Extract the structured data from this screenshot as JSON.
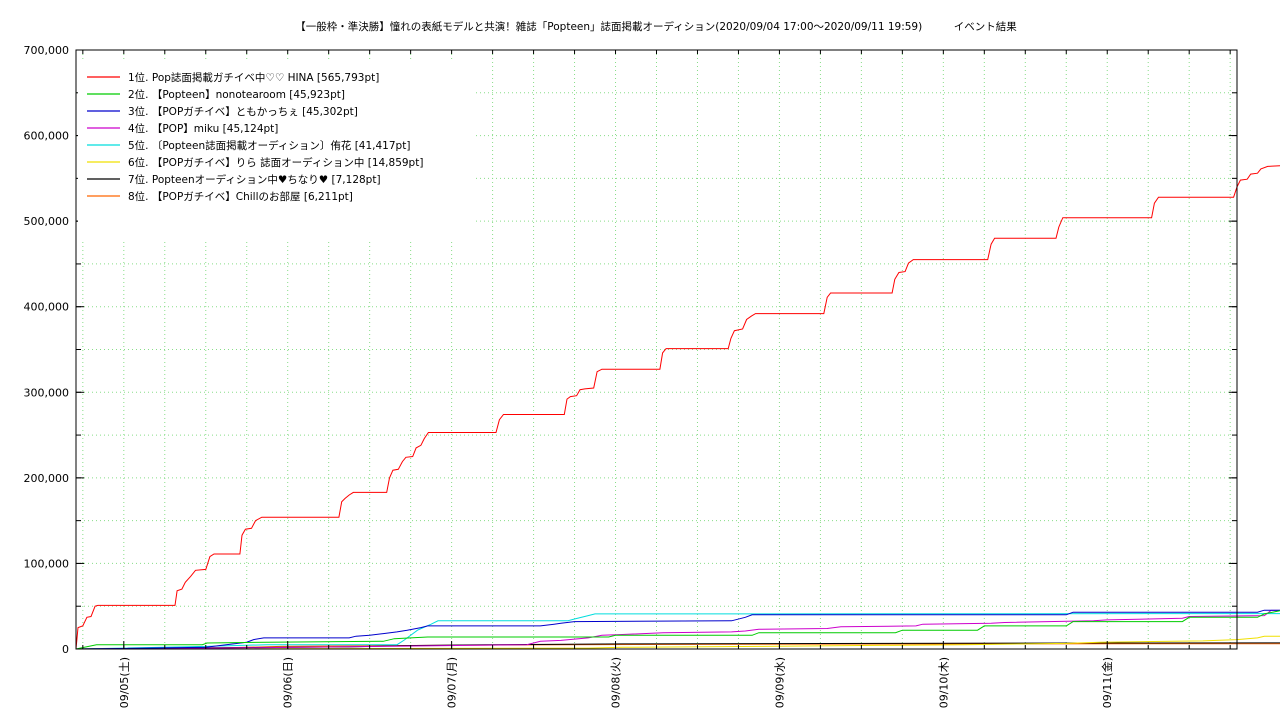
{
  "chart_data": {
    "type": "line",
    "title": "【一般枠・準決勝】憧れの表紙モデルと共演！雑誌「Popteen」誌面掲載オーディション(2020/09/04 17:00～2020/09/11 19:59)　　　イベント結果",
    "ylim": [
      0,
      700000
    ],
    "y_ticks": [
      "700,000",
      "600,000",
      "500,000",
      "400,000",
      "300,000",
      "200,000",
      "100,000",
      "0"
    ],
    "y_tick_values": [
      700000,
      600000,
      500000,
      400000,
      300000,
      200000,
      100000,
      0
    ],
    "x_range_hours": [
      0,
      170
    ],
    "x_ticks": [
      "09/05(土)",
      "09/06(日)",
      "09/07(月)",
      "09/08(火)",
      "09/09(水)",
      "09/10(木)",
      "09/11(金)"
    ],
    "x_tick_hours": [
      7,
      31,
      55,
      79,
      103,
      127,
      151
    ],
    "grid": true,
    "legend_position": "top-left",
    "series": [
      {
        "name": "1位. Pop誌面掲載ガチイベ中♡♡ HINA [565,793pt]",
        "color": "#ff0000",
        "points": [
          [
            0,
            0
          ],
          [
            0.3,
            25000
          ],
          [
            1,
            27000
          ],
          [
            1.6,
            37000
          ],
          [
            2.2,
            38000
          ],
          [
            2.8,
            50000
          ],
          [
            3.2,
            51000
          ],
          [
            14.5,
            51000
          ],
          [
            14.8,
            68000
          ],
          [
            15.5,
            70000
          ],
          [
            16,
            78000
          ],
          [
            16.8,
            85000
          ],
          [
            17.5,
            92000
          ],
          [
            19,
            93000
          ],
          [
            19.6,
            108000
          ],
          [
            20.2,
            111000
          ],
          [
            24,
            111000
          ],
          [
            24.3,
            133000
          ],
          [
            24.8,
            140000
          ],
          [
            25.7,
            141000
          ],
          [
            26.3,
            150000
          ],
          [
            27.2,
            154000
          ],
          [
            38.5,
            154000
          ],
          [
            38.9,
            172000
          ],
          [
            39.4,
            176000
          ],
          [
            40,
            180000
          ],
          [
            40.6,
            183000
          ],
          [
            45.5,
            183000
          ],
          [
            45.9,
            200000
          ],
          [
            46.4,
            209000
          ],
          [
            47.2,
            210000
          ],
          [
            47.8,
            219000
          ],
          [
            48.3,
            224000
          ],
          [
            49.3,
            225000
          ],
          [
            49.8,
            235000
          ],
          [
            50.5,
            238000
          ],
          [
            51,
            246000
          ],
          [
            51.6,
            253000
          ],
          [
            61.5,
            253000
          ],
          [
            62,
            268000
          ],
          [
            62.6,
            274000
          ],
          [
            71.5,
            274000
          ],
          [
            71.9,
            292000
          ],
          [
            72.4,
            295000
          ],
          [
            73.3,
            296000
          ],
          [
            73.8,
            303000
          ],
          [
            74.5,
            304000
          ],
          [
            75.8,
            305000
          ],
          [
            76.3,
            324000
          ],
          [
            77,
            327000
          ],
          [
            85.5,
            327000
          ],
          [
            85.9,
            346000
          ],
          [
            86.4,
            351000
          ],
          [
            95.5,
            351000
          ],
          [
            95.9,
            363000
          ],
          [
            96.4,
            372000
          ],
          [
            97.6,
            374000
          ],
          [
            98.2,
            385000
          ],
          [
            98.9,
            389000
          ],
          [
            99.5,
            392000
          ],
          [
            109.5,
            392000
          ],
          [
            110,
            411000
          ],
          [
            110.5,
            416000
          ],
          [
            119.5,
            416000
          ],
          [
            119.9,
            432000
          ],
          [
            120.5,
            440000
          ],
          [
            121.4,
            441000
          ],
          [
            121.9,
            451000
          ],
          [
            122.6,
            455000
          ],
          [
            133.5,
            455000
          ],
          [
            134,
            473000
          ],
          [
            134.5,
            480000
          ],
          [
            143.5,
            480000
          ],
          [
            143.9,
            493000
          ],
          [
            144.5,
            504000
          ],
          [
            157.5,
            504000
          ],
          [
            157.9,
            521000
          ],
          [
            158.5,
            528000
          ],
          [
            169.5,
            528000
          ],
          [
            170,
            540000
          ],
          [
            170.5,
            548000
          ],
          [
            171.5,
            549000
          ],
          [
            172,
            555000
          ],
          [
            173,
            556000
          ],
          [
            173.5,
            561000
          ],
          [
            174.5,
            564000
          ],
          [
            177,
            565000
          ]
        ]
      },
      {
        "name": "2位. 【Popteen】nonotearoom [45,923pt]",
        "color": "#00cc00",
        "points": [
          [
            0,
            0
          ],
          [
            3,
            5000
          ],
          [
            18.5,
            5000
          ],
          [
            19.2,
            7000
          ],
          [
            28,
            8000
          ],
          [
            45,
            9000
          ],
          [
            46.6,
            12000
          ],
          [
            49,
            13000
          ],
          [
            51.5,
            14000
          ],
          [
            78,
            14000
          ],
          [
            79,
            16000
          ],
          [
            99,
            16000
          ],
          [
            100,
            19000
          ],
          [
            120,
            19000
          ],
          [
            121,
            22000
          ],
          [
            132,
            22000
          ],
          [
            133,
            27000
          ],
          [
            145,
            27000
          ],
          [
            146,
            32000
          ],
          [
            162,
            32000
          ],
          [
            163,
            37000
          ],
          [
            173,
            37000
          ],
          [
            174,
            41000
          ],
          [
            177,
            45900
          ]
        ]
      },
      {
        "name": "3位. 【POPガチイベ】ともかっちぇ [45,302pt]",
        "color": "#0000cc",
        "points": [
          [
            0,
            0
          ],
          [
            19,
            2000
          ],
          [
            22,
            5000
          ],
          [
            25,
            8000
          ],
          [
            26,
            11000
          ],
          [
            27.5,
            13000
          ],
          [
            40,
            13000
          ],
          [
            41,
            15000
          ],
          [
            43,
            16000
          ],
          [
            45,
            18000
          ],
          [
            47,
            20000
          ],
          [
            48.5,
            22000
          ],
          [
            50.5,
            25000
          ],
          [
            51.5,
            27000
          ],
          [
            68,
            27000
          ],
          [
            70,
            29000
          ],
          [
            71,
            30000
          ],
          [
            73,
            32000
          ],
          [
            96,
            33000
          ],
          [
            98,
            37000
          ],
          [
            99,
            40000
          ],
          [
            145,
            40000
          ],
          [
            146,
            43000
          ],
          [
            173,
            43000
          ],
          [
            174,
            45300
          ],
          [
            177,
            45300
          ]
        ]
      },
      {
        "name": "4位. 【POP】miku [45,124pt]",
        "color": "#cc00cc",
        "points": [
          [
            0,
            0
          ],
          [
            20,
            1000
          ],
          [
            45,
            3000
          ],
          [
            66,
            5000
          ],
          [
            68,
            9000
          ],
          [
            71,
            10000
          ],
          [
            75,
            13000
          ],
          [
            77,
            16000
          ],
          [
            80,
            17000
          ],
          [
            86,
            19000
          ],
          [
            96,
            20000
          ],
          [
            98,
            21000
          ],
          [
            100,
            23000
          ],
          [
            110,
            24000
          ],
          [
            112,
            26000
          ],
          [
            123,
            27000
          ],
          [
            124,
            29000
          ],
          [
            134,
            30000
          ],
          [
            136,
            31000
          ],
          [
            149,
            33000
          ],
          [
            151,
            34000
          ],
          [
            162,
            36000
          ],
          [
            163,
            38000
          ],
          [
            174,
            39000
          ],
          [
            174.5,
            42000
          ],
          [
            175,
            45124
          ],
          [
            177,
            45124
          ]
        ]
      },
      {
        "name": "5位. 〔Popteen誌面掲載オーディション〕侑花 [41,417pt]",
        "color": "#00dddd",
        "points": [
          [
            0,
            0
          ],
          [
            19,
            3000
          ],
          [
            28,
            5000
          ],
          [
            47,
            5000
          ],
          [
            48,
            10000
          ],
          [
            50,
            22000
          ],
          [
            52,
            29000
          ],
          [
            53,
            33000
          ],
          [
            72,
            33000
          ],
          [
            73,
            35000
          ],
          [
            75,
            39000
          ],
          [
            76,
            41000
          ],
          [
            177,
            41417
          ]
        ]
      },
      {
        "name": "6位. 【POPガチイベ】りら 誌面オーディション中 [14,859pt]",
        "color": "#f0e000",
        "points": [
          [
            0,
            0
          ],
          [
            40,
            500
          ],
          [
            75,
            1000
          ],
          [
            80,
            2000
          ],
          [
            100,
            3000
          ],
          [
            130,
            5000
          ],
          [
            145,
            6500
          ],
          [
            150,
            8000
          ],
          [
            165,
            9500
          ],
          [
            170,
            11000
          ],
          [
            173,
            13000
          ],
          [
            174,
            14859
          ],
          [
            177,
            14859
          ]
        ]
      },
      {
        "name": "7位. Popteenオーディション中♥ちなり♥ [7,128pt]",
        "color": "#000000",
        "points": [
          [
            0,
            0
          ],
          [
            20,
            1500
          ],
          [
            40,
            2500
          ],
          [
            48,
            4000
          ],
          [
            60,
            5000
          ],
          [
            72,
            5500
          ],
          [
            80,
            6000
          ],
          [
            120,
            6500
          ],
          [
            150,
            7000
          ],
          [
            177,
            7128
          ]
        ]
      },
      {
        "name": "8位. 【POPガチイベ】Chillのお部屋 [6,211pt]",
        "color": "#ff6600",
        "points": [
          [
            0,
            0
          ],
          [
            20,
            1000
          ],
          [
            30,
            3000
          ],
          [
            45,
            4000
          ],
          [
            60,
            4500
          ],
          [
            72,
            5000
          ],
          [
            100,
            5500
          ],
          [
            130,
            6000
          ],
          [
            177,
            6211
          ]
        ]
      }
    ]
  }
}
